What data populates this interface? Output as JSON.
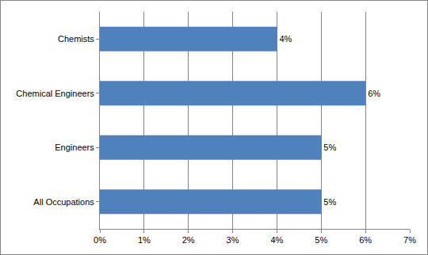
{
  "chart_data": {
    "type": "bar",
    "orientation": "horizontal",
    "categories": [
      "Chemists",
      "Chemical Engineers",
      "Engineers",
      "All Occupations"
    ],
    "values": [
      4,
      6,
      5,
      5
    ],
    "value_labels": [
      "4%",
      "6%",
      "5%",
      "5%"
    ],
    "data_labels": true,
    "color": "#4f81bd",
    "xlim": [
      0,
      7
    ],
    "xticks": [
      {
        "value": 0,
        "label": "0%"
      },
      {
        "value": 1,
        "label": "1%"
      },
      {
        "value": 2,
        "label": "2%"
      },
      {
        "value": 3,
        "label": "3%"
      },
      {
        "value": 4,
        "label": "4%"
      },
      {
        "value": 5,
        "label": "5%"
      },
      {
        "value": 6,
        "label": "6%"
      },
      {
        "value": 7,
        "label": "7%"
      }
    ],
    "grid": true
  }
}
